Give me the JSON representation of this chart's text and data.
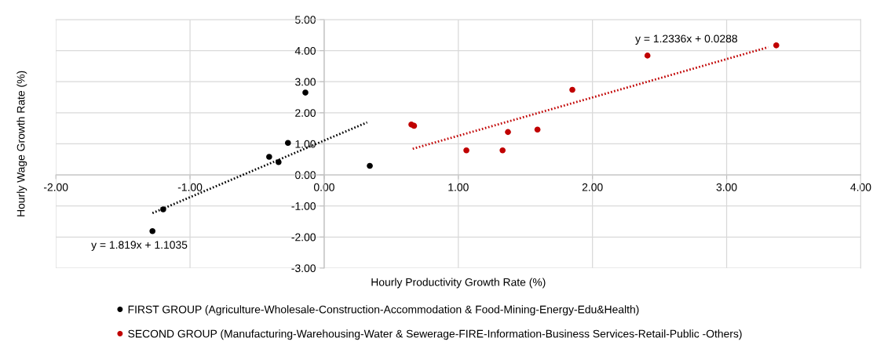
{
  "chart_data": {
    "type": "scatter",
    "xlabel": "Hourly Productivity Growth Rate (%)",
    "ylabel": "Hourly Wage Growth Rate (%)",
    "xlim": [
      -2,
      4
    ],
    "ylim": [
      -3,
      5
    ],
    "xticks": [
      {
        "value": -2,
        "label": "-2.00"
      },
      {
        "value": -1,
        "label": "-1.00"
      },
      {
        "value": 0,
        "label": "0.00"
      },
      {
        "value": 1,
        "label": "1.00"
      },
      {
        "value": 2,
        "label": "2.00"
      },
      {
        "value": 3,
        "label": "3.00"
      },
      {
        "value": 4,
        "label": "4.00"
      }
    ],
    "yticks": [
      {
        "value": -3,
        "label": "-3.00"
      },
      {
        "value": -2,
        "label": "-2.00"
      },
      {
        "value": -1,
        "label": "-1.00"
      },
      {
        "value": 0,
        "label": "0.00"
      },
      {
        "value": 1,
        "label": "1.00"
      },
      {
        "value": 2,
        "label": "2.00"
      },
      {
        "value": 3,
        "label": "3.00"
      },
      {
        "value": 4,
        "label": "4.00"
      },
      {
        "value": 5,
        "label": "5.00"
      }
    ],
    "grid": true,
    "legend": "bottom",
    "marker": "circle",
    "series": [
      {
        "name": "FIRST GROUP (Agriculture-Wholesale-Construction-Accommodation & Food-Mining-Energy-Edu&Health)",
        "color": "#000000",
        "x": [
          -1.28,
          -1.2,
          -0.41,
          -0.34,
          -0.27,
          -0.14,
          0.34
        ],
        "values": [
          -1.81,
          -1.11,
          0.58,
          0.41,
          1.03,
          2.65,
          0.29
        ]
      },
      {
        "name": "SECOND GROUP (Manufacturing-Warehousing-Water & Sewerage-FIRE-Information-Business Services-Retail-Public -Others)",
        "color": "#c00000",
        "x": [
          0.65,
          0.67,
          1.06,
          1.33,
          1.37,
          1.59,
          1.85,
          2.41,
          3.37
        ],
        "values": [
          1.62,
          1.58,
          0.79,
          0.79,
          1.38,
          1.46,
          2.74,
          3.84,
          4.17
        ]
      },
      {
        "type": "line",
        "line_style": "dotted",
        "marker": "none",
        "color": "#000000",
        "x": [
          -1.28,
          0.32
        ],
        "values": [
          -1.23,
          1.69
        ]
      },
      {
        "type": "line",
        "line_style": "dotted",
        "marker": "none",
        "color": "#c00000",
        "x": [
          0.66,
          3.31
        ],
        "values": [
          0.84,
          4.11
        ]
      }
    ],
    "annotations": [
      "y = 1.819x + 1.1035",
      "y = 1.2336x + 0.0288"
    ]
  }
}
